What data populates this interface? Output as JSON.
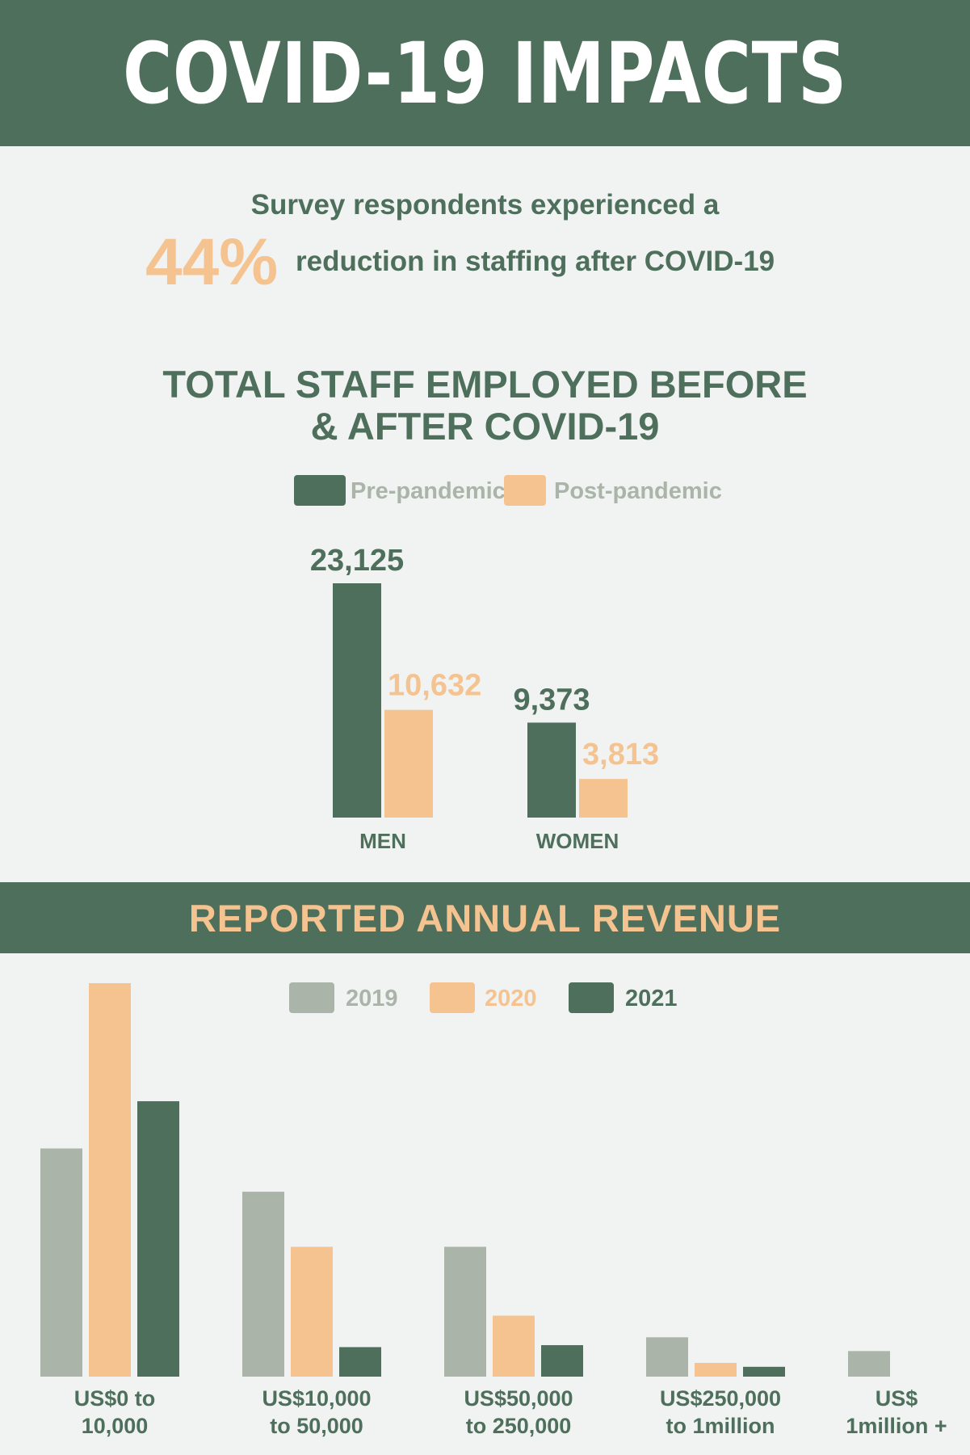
{
  "header": {
    "title": "COVID-19 IMPACTS"
  },
  "survey": {
    "line1": "Survey respondents experienced a",
    "percent": "44%",
    "line2": "reduction in staffing after COVID-19"
  },
  "staff_section": {
    "title_line1": "TOTAL STAFF EMPLOYED BEFORE",
    "title_line2": "& AFTER COVID-19"
  },
  "revenue_section": {
    "title": "REPORTED ANNUAL REVENUE"
  },
  "colors": {
    "dark_green": "#4d6f5b",
    "peach": "#f4c390",
    "gray_green": "#aab4a8",
    "background": "#f1f3f2"
  },
  "chart_data": [
    {
      "type": "bar",
      "title": "TOTAL STAFF EMPLOYED BEFORE & AFTER COVID-19",
      "categories": [
        "MEN",
        "WOMEN"
      ],
      "series": [
        {
          "name": "Pre-pandemic",
          "values": [
            23125,
            9373
          ],
          "labels": [
            "23,125",
            "9,373"
          ]
        },
        {
          "name": "Post-pandemic",
          "values": [
            10632,
            3813
          ],
          "labels": [
            "10,632",
            "3,813"
          ]
        }
      ],
      "ylim": [
        0,
        23125
      ],
      "legend": "top-center",
      "grid": false
    },
    {
      "type": "bar",
      "title": "REPORTED ANNUAL REVENUE",
      "categories": [
        [
          "US$0 to",
          "10,000"
        ],
        [
          "US$10,000",
          "to 50,000"
        ],
        [
          "US$50,000",
          "to 250,000"
        ],
        [
          "US$250,000",
          "to 1million"
        ],
        [
          "US$",
          "1million +"
        ]
      ],
      "series": [
        {
          "name": "2019",
          "values": [
            58,
            47,
            33,
            10,
            6.5
          ]
        },
        {
          "name": "2020",
          "values": [
            100,
            33,
            15.5,
            3.5,
            0
          ]
        },
        {
          "name": "2021",
          "values": [
            70,
            7.5,
            8,
            2.5,
            0
          ]
        }
      ],
      "ylim": [
        0,
        100
      ],
      "ylabel": "",
      "legend": "top-center",
      "grid": false
    }
  ]
}
